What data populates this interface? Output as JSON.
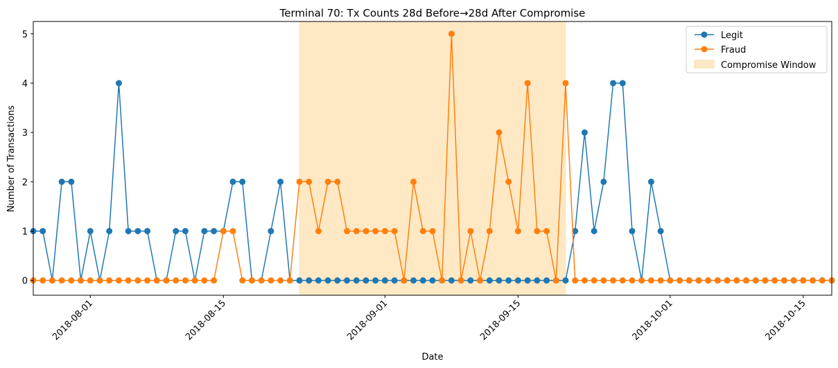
{
  "chart_data": {
    "type": "line",
    "title": "Terminal 70: Tx Counts 28d Before→28d After Compromise",
    "xlabel": "Date",
    "ylabel": "Number of Transactions",
    "x_start": "2018-07-26",
    "x_end": "2018-10-18",
    "ylim": [
      -0.3,
      5.25
    ],
    "yticks": [
      "0",
      "1",
      "2",
      "3",
      "4",
      "5"
    ],
    "xticks": [
      {
        "date": "2018-08-01",
        "label": "2018-08-01"
      },
      {
        "date": "2018-08-15",
        "label": "2018-08-15"
      },
      {
        "date": "2018-09-01",
        "label": "2018-09-01"
      },
      {
        "date": "2018-09-15",
        "label": "2018-09-15"
      },
      {
        "date": "2018-10-01",
        "label": "2018-10-01"
      },
      {
        "date": "2018-10-15",
        "label": "2018-10-15"
      }
    ],
    "grid": false,
    "legend_position": "top-right",
    "shaded_region": {
      "label": "Compromise Window",
      "start": "2018-08-23",
      "end": "2018-09-20",
      "color": "#ffe9c4"
    },
    "series": [
      {
        "name": "Legit",
        "color": "#1f77b4",
        "values": [
          1,
          1,
          0,
          2,
          2,
          0,
          1,
          0,
          1,
          4,
          1,
          1,
          1,
          0,
          0,
          1,
          1,
          0,
          1,
          1,
          1,
          2,
          2,
          0,
          0,
          1,
          2,
          0,
          0,
          0,
          0,
          0,
          0,
          0,
          0,
          0,
          0,
          0,
          0,
          0,
          0,
          0,
          0,
          0,
          0,
          0,
          0,
          0,
          0,
          0,
          0,
          0,
          0,
          0,
          0,
          0,
          0,
          1,
          3,
          1,
          2,
          4,
          4,
          1,
          0,
          2,
          1,
          0,
          0,
          0,
          0,
          0,
          0,
          0,
          0,
          0,
          0,
          0,
          0,
          0,
          0,
          0,
          0,
          0,
          0
        ]
      },
      {
        "name": "Fraud",
        "color": "#ff7f0e",
        "values": [
          0,
          0,
          0,
          0,
          0,
          0,
          0,
          0,
          0,
          0,
          0,
          0,
          0,
          0,
          0,
          0,
          0,
          0,
          0,
          0,
          1,
          1,
          0,
          0,
          0,
          0,
          0,
          0,
          2,
          2,
          1,
          2,
          2,
          1,
          1,
          1,
          1,
          1,
          1,
          0,
          2,
          1,
          1,
          0,
          5,
          0,
          1,
          0,
          1,
          3,
          2,
          1,
          4,
          1,
          1,
          0,
          4,
          0,
          0,
          0,
          0,
          0,
          0,
          0,
          0,
          0,
          0,
          0,
          0,
          0,
          0,
          0,
          0,
          0,
          0,
          0,
          0,
          0,
          0,
          0,
          0,
          0,
          0,
          0,
          0
        ]
      }
    ]
  }
}
